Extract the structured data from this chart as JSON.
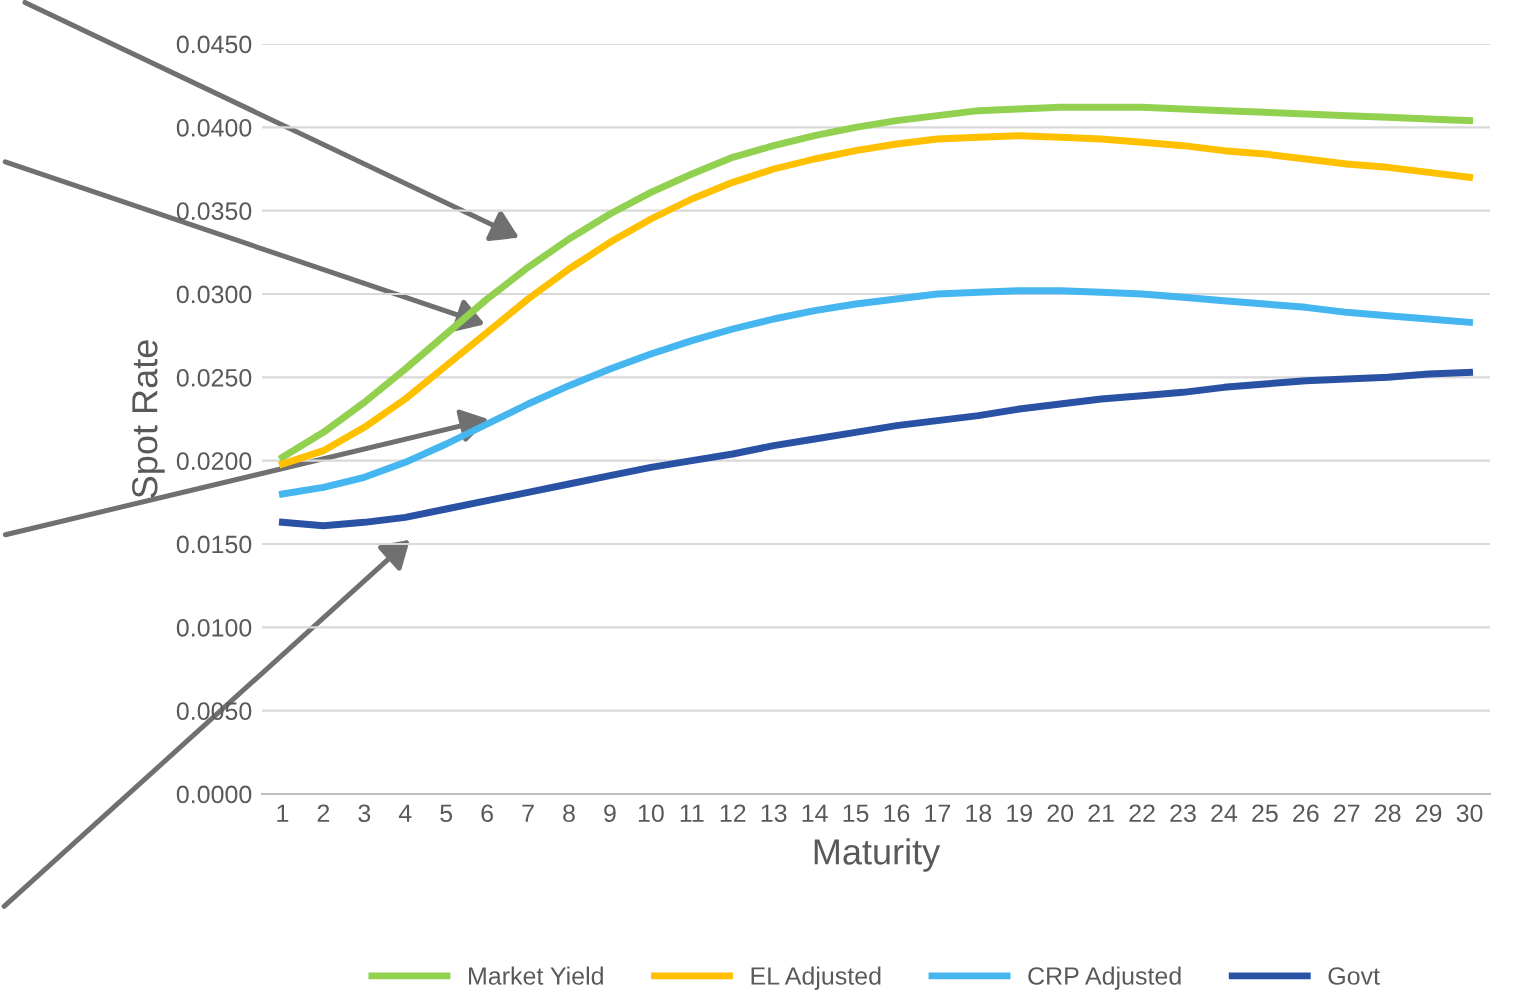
{
  "chart_data": {
    "type": "line",
    "xlabel": "Maturity",
    "ylabel": "Spot Rate",
    "categories": [
      "1",
      "2",
      "3",
      "4",
      "5",
      "6",
      "7",
      "8",
      "9",
      "10",
      "11",
      "12",
      "13",
      "14",
      "15",
      "16",
      "17",
      "18",
      "19",
      "20",
      "21",
      "22",
      "23",
      "24",
      "25",
      "26",
      "27",
      "28",
      "29",
      "30"
    ],
    "series": [
      {
        "name": "Market Yield",
        "color": "#92d050",
        "values": [
          0.0202,
          0.0217,
          0.0235,
          0.0255,
          0.0276,
          0.0297,
          0.0316,
          0.0333,
          0.0348,
          0.0361,
          0.0372,
          0.0382,
          0.0389,
          0.0395,
          0.04,
          0.0404,
          0.0407,
          0.041,
          0.0411,
          0.0412,
          0.0412,
          0.0412,
          0.0411,
          0.041,
          0.0409,
          0.0408,
          0.0407,
          0.0406,
          0.0405,
          0.0404
        ]
      },
      {
        "name": "EL Adjusted",
        "color": "#ffc000",
        "values": [
          0.0198,
          0.0206,
          0.022,
          0.0237,
          0.0257,
          0.0277,
          0.0297,
          0.0315,
          0.0331,
          0.0345,
          0.0357,
          0.0367,
          0.0375,
          0.0381,
          0.0386,
          0.039,
          0.0393,
          0.0394,
          0.0395,
          0.0394,
          0.0393,
          0.0391,
          0.0389,
          0.0386,
          0.0384,
          0.0381,
          0.0378,
          0.0376,
          0.0373,
          0.037
        ]
      },
      {
        "name": "CRP Adjusted",
        "color": "#45b6f0",
        "values": [
          0.018,
          0.0184,
          0.019,
          0.0199,
          0.021,
          0.0222,
          0.0234,
          0.0245,
          0.0255,
          0.0264,
          0.0272,
          0.0279,
          0.0285,
          0.029,
          0.0294,
          0.0297,
          0.03,
          0.0301,
          0.0302,
          0.0302,
          0.0301,
          0.03,
          0.0298,
          0.0296,
          0.0294,
          0.0292,
          0.0289,
          0.0287,
          0.0285,
          0.0283
        ]
      },
      {
        "name": "Govt",
        "color": "#2a52a4",
        "values": [
          0.0163,
          0.0161,
          0.0163,
          0.0166,
          0.0171,
          0.0176,
          0.0181,
          0.0186,
          0.0191,
          0.0196,
          0.02,
          0.0204,
          0.0209,
          0.0213,
          0.0217,
          0.0221,
          0.0224,
          0.0227,
          0.0231,
          0.0234,
          0.0237,
          0.0239,
          0.0241,
          0.0244,
          0.0246,
          0.0248,
          0.0249,
          0.025,
          0.0252,
          0.0253
        ]
      }
    ],
    "ylim": [
      0,
      0.045
    ],
    "yticks": [
      {
        "value": 0,
        "label": "0.0000"
      },
      {
        "value": 0.005,
        "label": "0.0050"
      },
      {
        "value": 0.01,
        "label": "0.0100"
      },
      {
        "value": 0.015,
        "label": "0.0150"
      },
      {
        "value": 0.02,
        "label": "0.0200"
      },
      {
        "value": 0.025,
        "label": "0.0250"
      },
      {
        "value": 0.03,
        "label": "0.0300"
      },
      {
        "value": 0.035,
        "label": "0.0350"
      },
      {
        "value": 0.04,
        "label": "0.0400"
      },
      {
        "value": 0.045,
        "label": "0.0450"
      }
    ],
    "grid": "y",
    "legend": "bottom",
    "marker": "none",
    "line_style": "solid"
  }
}
